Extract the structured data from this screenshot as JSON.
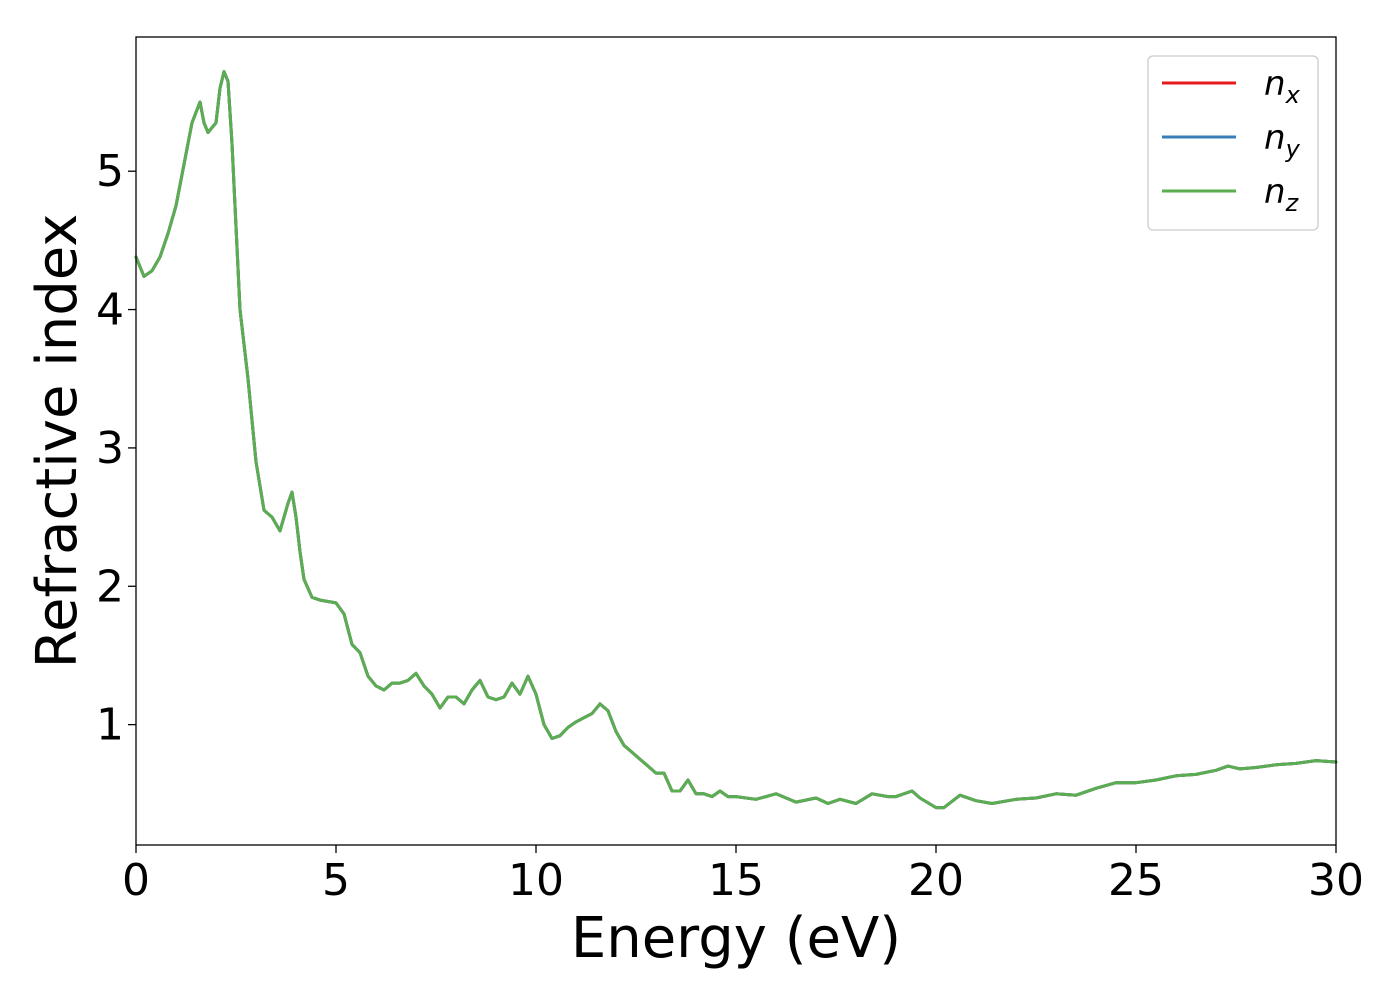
{
  "chart_data": {
    "type": "line",
    "title": "",
    "xlabel": "Energy (eV)",
    "ylabel": "Refractive index",
    "xlim": [
      0,
      30
    ],
    "ylim": [
      0.13,
      5.97
    ],
    "xticks": [
      0,
      5,
      10,
      15,
      20,
      25,
      30
    ],
    "xtick_labels": [
      "0",
      "5",
      "10",
      "15",
      "20",
      "25",
      "30"
    ],
    "yticks": [
      1,
      2,
      3,
      4,
      5
    ],
    "ytick_labels": [
      "1",
      "2",
      "3",
      "4",
      "5"
    ],
    "grid": false,
    "legend_position": "top-right",
    "x": [
      0,
      0.2,
      0.4,
      0.6,
      0.8,
      1.0,
      1.2,
      1.4,
      1.6,
      1.7,
      1.8,
      2.0,
      2.1,
      2.2,
      2.3,
      2.4,
      2.5,
      2.6,
      2.7,
      2.8,
      3.0,
      3.2,
      3.4,
      3.6,
      3.8,
      3.9,
      4.0,
      4.1,
      4.2,
      4.4,
      4.6,
      4.8,
      5.0,
      5.2,
      5.4,
      5.6,
      5.8,
      6.0,
      6.2,
      6.4,
      6.6,
      6.8,
      7.0,
      7.2,
      7.4,
      7.6,
      7.8,
      8.0,
      8.2,
      8.4,
      8.6,
      8.8,
      9.0,
      9.2,
      9.4,
      9.6,
      9.8,
      10.0,
      10.2,
      10.4,
      10.6,
      10.8,
      11.0,
      11.2,
      11.4,
      11.6,
      11.8,
      12.0,
      12.2,
      12.4,
      12.6,
      12.8,
      13.0,
      13.2,
      13.4,
      13.6,
      13.8,
      14.0,
      14.2,
      14.4,
      14.6,
      14.8,
      15.0,
      15.5,
      16.0,
      16.5,
      17.0,
      17.3,
      17.6,
      18.0,
      18.4,
      18.8,
      19.0,
      19.4,
      19.6,
      20.0,
      20.2,
      20.6,
      21.0,
      21.4,
      22.0,
      22.5,
      23.0,
      23.5,
      24.0,
      24.5,
      25.0,
      25.5,
      26.0,
      26.5,
      27.0,
      27.3,
      27.6,
      28.0,
      28.5,
      29.0,
      29.5,
      30.0
    ],
    "series": [
      {
        "name": "n_x",
        "label_base": "n",
        "label_sub": "x",
        "color": "#e41a1c",
        "values": [
          4.38,
          4.24,
          4.28,
          4.38,
          4.55,
          4.75,
          5.05,
          5.35,
          5.5,
          5.35,
          5.28,
          5.35,
          5.6,
          5.72,
          5.65,
          5.2,
          4.6,
          4.0,
          3.75,
          3.5,
          2.9,
          2.55,
          2.5,
          2.4,
          2.6,
          2.68,
          2.5,
          2.25,
          2.05,
          1.92,
          1.9,
          1.89,
          1.88,
          1.8,
          1.58,
          1.52,
          1.35,
          1.28,
          1.25,
          1.3,
          1.3,
          1.32,
          1.37,
          1.28,
          1.22,
          1.12,
          1.2,
          1.2,
          1.15,
          1.25,
          1.32,
          1.2,
          1.18,
          1.2,
          1.3,
          1.22,
          1.35,
          1.22,
          1.0,
          0.9,
          0.92,
          0.98,
          1.02,
          1.05,
          1.08,
          1.15,
          1.1,
          0.95,
          0.85,
          0.8,
          0.75,
          0.7,
          0.65,
          0.65,
          0.52,
          0.52,
          0.6,
          0.5,
          0.5,
          0.48,
          0.52,
          0.48,
          0.48,
          0.46,
          0.5,
          0.44,
          0.47,
          0.43,
          0.46,
          0.43,
          0.5,
          0.48,
          0.48,
          0.52,
          0.47,
          0.4,
          0.4,
          0.49,
          0.45,
          0.43,
          0.46,
          0.47,
          0.5,
          0.49,
          0.54,
          0.58,
          0.58,
          0.6,
          0.63,
          0.64,
          0.67,
          0.7,
          0.68,
          0.69,
          0.71,
          0.72,
          0.74,
          0.73
        ]
      },
      {
        "name": "n_y",
        "label_base": "n",
        "label_sub": "y",
        "color": "#377eb8",
        "values": [
          4.38,
          4.24,
          4.28,
          4.38,
          4.55,
          4.75,
          5.05,
          5.35,
          5.5,
          5.35,
          5.28,
          5.35,
          5.6,
          5.72,
          5.65,
          5.2,
          4.6,
          4.0,
          3.75,
          3.5,
          2.9,
          2.55,
          2.5,
          2.4,
          2.6,
          2.68,
          2.5,
          2.25,
          2.05,
          1.92,
          1.9,
          1.89,
          1.88,
          1.8,
          1.58,
          1.52,
          1.35,
          1.28,
          1.25,
          1.3,
          1.3,
          1.32,
          1.37,
          1.28,
          1.22,
          1.12,
          1.2,
          1.2,
          1.15,
          1.25,
          1.32,
          1.2,
          1.18,
          1.2,
          1.3,
          1.22,
          1.35,
          1.22,
          1.0,
          0.9,
          0.92,
          0.98,
          1.02,
          1.05,
          1.08,
          1.15,
          1.1,
          0.95,
          0.85,
          0.8,
          0.75,
          0.7,
          0.65,
          0.65,
          0.52,
          0.52,
          0.6,
          0.5,
          0.5,
          0.48,
          0.52,
          0.48,
          0.48,
          0.46,
          0.5,
          0.44,
          0.47,
          0.43,
          0.46,
          0.43,
          0.5,
          0.48,
          0.48,
          0.52,
          0.47,
          0.4,
          0.4,
          0.49,
          0.45,
          0.43,
          0.46,
          0.47,
          0.5,
          0.49,
          0.54,
          0.58,
          0.58,
          0.6,
          0.63,
          0.64,
          0.67,
          0.7,
          0.68,
          0.69,
          0.71,
          0.72,
          0.74,
          0.73
        ]
      },
      {
        "name": "n_z",
        "label_base": "n",
        "label_sub": "z",
        "color": "#5aae51",
        "values": [
          4.38,
          4.24,
          4.28,
          4.38,
          4.55,
          4.75,
          5.05,
          5.35,
          5.5,
          5.35,
          5.28,
          5.35,
          5.6,
          5.72,
          5.65,
          5.2,
          4.6,
          4.0,
          3.75,
          3.5,
          2.9,
          2.55,
          2.5,
          2.4,
          2.6,
          2.68,
          2.5,
          2.25,
          2.05,
          1.92,
          1.9,
          1.89,
          1.88,
          1.8,
          1.58,
          1.52,
          1.35,
          1.28,
          1.25,
          1.3,
          1.3,
          1.32,
          1.37,
          1.28,
          1.22,
          1.12,
          1.2,
          1.2,
          1.15,
          1.25,
          1.32,
          1.2,
          1.18,
          1.2,
          1.3,
          1.22,
          1.35,
          1.22,
          1.0,
          0.9,
          0.92,
          0.98,
          1.02,
          1.05,
          1.08,
          1.15,
          1.1,
          0.95,
          0.85,
          0.8,
          0.75,
          0.7,
          0.65,
          0.65,
          0.52,
          0.52,
          0.6,
          0.5,
          0.5,
          0.48,
          0.52,
          0.48,
          0.48,
          0.46,
          0.5,
          0.44,
          0.47,
          0.43,
          0.46,
          0.43,
          0.5,
          0.48,
          0.48,
          0.52,
          0.47,
          0.4,
          0.4,
          0.49,
          0.45,
          0.43,
          0.46,
          0.47,
          0.5,
          0.49,
          0.54,
          0.58,
          0.58,
          0.6,
          0.63,
          0.64,
          0.67,
          0.7,
          0.68,
          0.69,
          0.71,
          0.72,
          0.74,
          0.73
        ]
      }
    ]
  }
}
